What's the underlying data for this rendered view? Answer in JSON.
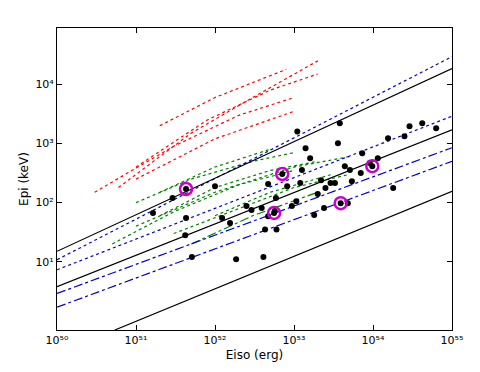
{
  "chart_data": {
    "type": "scatter",
    "x_label": "Eiso (erg)",
    "y_label": "Epi (keV)",
    "log": true,
    "grid": false,
    "xlim": [
      1e+50,
      1e+55
    ],
    "ylim": [
      0.7,
      90000
    ],
    "xticks": [
      {
        "value": 1e+50,
        "label": "10⁵⁰"
      },
      {
        "value": 1e+51,
        "label": "10⁵¹"
      },
      {
        "value": 1e+52,
        "label": "10⁵²"
      },
      {
        "value": 1e+53,
        "label": "10⁵³"
      },
      {
        "value": 1e+54,
        "label": "10⁵⁴"
      },
      {
        "value": 1e+55,
        "label": "10⁵⁵"
      }
    ],
    "yticks": [
      {
        "value": 10,
        "label": "10¹"
      },
      {
        "value": 100,
        "label": "10²"
      },
      {
        "value": 1000,
        "label": "10³"
      },
      {
        "value": 10000,
        "label": "10⁴"
      }
    ],
    "series": [
      {
        "type": "line",
        "color": "#ff0000",
        "line_style": "dot",
        "x": [
          6e+50,
          5e+51,
          3e+52,
          2e+53
        ],
        "values": [
          180,
          1500,
          6000,
          25000
        ]
      },
      {
        "type": "line",
        "color": "#ff0000",
        "line_style": "dot",
        "x": [
          1e+51,
          8e+51,
          5e+52,
          2e+53
        ],
        "values": [
          400,
          2500,
          8000,
          15000
        ]
      },
      {
        "type": "line",
        "color": "#ff0000",
        "line_style": "dot",
        "x": [
          3e+50,
          3e+51,
          2e+52,
          1e+53
        ],
        "values": [
          150,
          900,
          3000,
          6000
        ]
      },
      {
        "type": "line",
        "color": "#ff0000",
        "line_style": "dot",
        "x": [
          2e+51,
          1e+52,
          8e+52
        ],
        "values": [
          2000,
          6000,
          18000
        ]
      },
      {
        "type": "line",
        "color": "#ff0000",
        "line_style": "dot",
        "x": [
          1e+51,
          1e+52,
          1e+53
        ],
        "values": [
          250,
          1200,
          3500
        ]
      },
      {
        "type": "line",
        "color": "#008000",
        "line_style": "dot",
        "x": [
          1e+51,
          1e+52,
          1e+53,
          5e+53
        ],
        "values": [
          40,
          150,
          400,
          600
        ]
      },
      {
        "type": "line",
        "color": "#008000",
        "line_style": "dot",
        "x": [
          2e+51,
          1e+52,
          5e+52,
          2e+53
        ],
        "values": [
          60,
          180,
          350,
          500
        ]
      },
      {
        "type": "line",
        "color": "#008000",
        "line_style": "dot",
        "x": [
          5e+50,
          3e+51,
          2e+52,
          1e+53
        ],
        "values": [
          20,
          70,
          200,
          350
        ]
      },
      {
        "type": "line",
        "color": "#008000",
        "line_style": "dot",
        "x": [
          1e+51,
          5e+51,
          3e+52,
          1e+53
        ],
        "values": [
          100,
          250,
          500,
          700
        ]
      },
      {
        "type": "line",
        "color": "#008000",
        "line_style": "dot",
        "x": [
          3e+51,
          2e+52,
          1e+53,
          5e+53
        ],
        "values": [
          30,
          80,
          180,
          300
        ]
      },
      {
        "type": "line",
        "color": "#008000",
        "line_style": "dot",
        "x": [
          1e+52,
          5e+52,
          3e+53
        ],
        "values": [
          60,
          150,
          300
        ]
      },
      {
        "type": "line",
        "color": "#008000",
        "line_style": "dot",
        "x": [
          2e+51,
          1e+52,
          5e+52
        ],
        "values": [
          150,
          400,
          800
        ]
      },
      {
        "type": "line",
        "color": "#008000",
        "line_style": "dashdot",
        "x": [
          5e+51,
          3e+52,
          2e+53
        ],
        "values": [
          20,
          60,
          150
        ]
      },
      {
        "type": "line",
        "color": "#0000cc",
        "line_style": "dot",
        "x": [
          1e+50,
          1e+55
        ],
        "values": [
          10.8,
          29500
        ]
      },
      {
        "type": "line",
        "color": "#0000cc",
        "line_style": "dot",
        "x": [
          1e+50,
          1e+55
        ],
        "values": [
          7.3,
          2900
        ]
      },
      {
        "type": "line",
        "color": "#0000cc",
        "line_style": "dashdot",
        "x": [
          1e+50,
          1e+55
        ],
        "values": [
          2.9,
          850
        ]
      },
      {
        "type": "line",
        "color": "#0000cc",
        "line_style": "dashdot",
        "x": [
          1e+50,
          1e+55
        ],
        "values": [
          1.7,
          500
        ]
      },
      {
        "type": "line",
        "color": "#000000",
        "line_style": "solid",
        "x": [
          1e+50,
          1e+55
        ],
        "values": [
          15,
          18600
        ]
      },
      {
        "type": "line",
        "color": "#000000",
        "line_style": "solid",
        "x": [
          1e+50,
          1e+55
        ],
        "values": [
          3.8,
          1700
        ]
      },
      {
        "type": "line",
        "color": "#000000",
        "line_style": "solid",
        "x": [
          5.4e+50,
          1e+55
        ],
        "values": [
          0.7,
          155
        ]
      },
      {
        "type": "scatter",
        "color": "#000000",
        "marker": "circle",
        "x": [
          1.64e+51,
          2.9e+51,
          4.2e+51,
          4.3e+51,
          1e+52,
          1.85e+52,
          4.1e+52,
          1.23e+52,
          1.55e+52,
          2.5e+52,
          2.9e+52,
          3.9e+52,
          4.3e+52,
          4.7e+52,
          5.7e+52,
          5.9e+52,
          6e+52,
          4.7e+52,
          8.2e+52,
          9.4e+52,
          1.07e+53,
          1.2e+53,
          1.26e+53,
          1.4e+53,
          1.6e+53,
          1.8e+53,
          2e+53,
          2.2e+53,
          2.4e+53,
          2.5e+53,
          2.9e+53,
          3.3e+53,
          3.6e+53,
          3.8e+53,
          4.4e+53,
          4.8e+53,
          5.1e+53,
          5.4e+53,
          7e+53,
          7.3e+53,
          9.1e+53,
          1.15e+54,
          1.55e+54,
          1.8e+54,
          2.5e+54,
          2.9e+54,
          4.2e+54,
          6.3e+54,
          1.1e+53,
          5.1e+51,
          4.3e+51,
          7.1e+52,
          5.6e+52,
          3.9e+53,
          9.8e+53
        ],
        "values": [
          67,
          120,
          28,
          55,
          190,
          11,
          12,
          55,
          45,
          88,
          75,
          81,
          35,
          59,
          72,
          120,
          35,
          206,
          190,
          88,
          106,
          214,
          355,
          830,
          565,
          62,
          140,
          240,
          81,
          176,
          214,
          214,
          1010,
          2200,
          414,
          98,
          355,
          231,
          316,
          685,
          466,
          565,
          1230,
          176,
          1330,
          1960,
          2200,
          1810,
          1600,
          12,
          170,
          305,
          67,
          98,
          414
        ]
      },
      {
        "type": "scatter",
        "color": "#cc00cc",
        "marker": "circle-open",
        "x": [
          4.3e+51,
          7.1e+52,
          5.6e+52,
          3.9e+53,
          9.8e+53
        ],
        "values": [
          170,
          305,
          67,
          98,
          414
        ]
      }
    ]
  }
}
